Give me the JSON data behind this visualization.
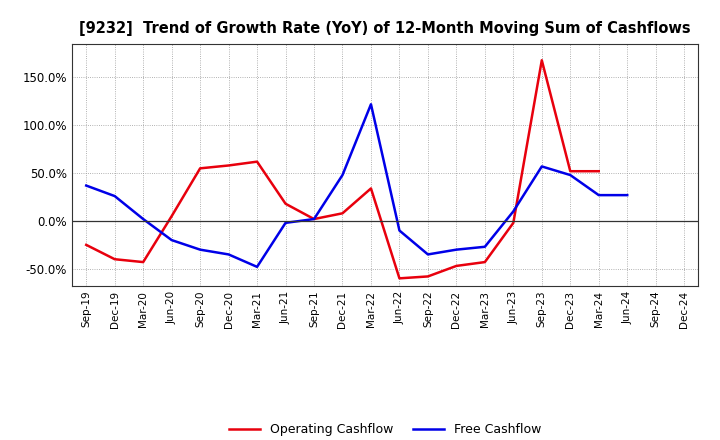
{
  "title": "[9232]  Trend of Growth Rate (YoY) of 12-Month Moving Sum of Cashflows",
  "x_labels": [
    "Sep-19",
    "Dec-19",
    "Mar-20",
    "Jun-20",
    "Sep-20",
    "Dec-20",
    "Mar-21",
    "Jun-21",
    "Sep-21",
    "Dec-21",
    "Mar-22",
    "Jun-22",
    "Sep-22",
    "Dec-22",
    "Mar-23",
    "Jun-23",
    "Sep-23",
    "Dec-23",
    "Mar-24",
    "Jun-24",
    "Sep-24",
    "Dec-24"
  ],
  "operating_cashflow": [
    -0.25,
    -0.4,
    -0.43,
    0.05,
    0.55,
    0.58,
    0.62,
    0.18,
    0.02,
    0.08,
    0.34,
    -0.6,
    -0.58,
    -0.47,
    -0.43,
    -0.02,
    1.68,
    0.52,
    0.52,
    null,
    null,
    null
  ],
  "free_cashflow": [
    0.37,
    0.26,
    0.02,
    -0.2,
    -0.3,
    -0.35,
    -0.48,
    -0.02,
    0.02,
    0.48,
    1.22,
    -0.1,
    -0.35,
    -0.3,
    -0.27,
    0.1,
    0.57,
    0.48,
    0.27,
    0.27,
    null,
    null
  ],
  "op_color": "#e8000d",
  "free_color": "#0000e8",
  "background": "#ffffff",
  "grid_color": "#999999",
  "ylim": [
    -0.68,
    1.85
  ],
  "yticks": [
    -0.5,
    0.0,
    0.5,
    1.0,
    1.5
  ],
  "legend_labels": [
    "Operating Cashflow",
    "Free Cashflow"
  ]
}
